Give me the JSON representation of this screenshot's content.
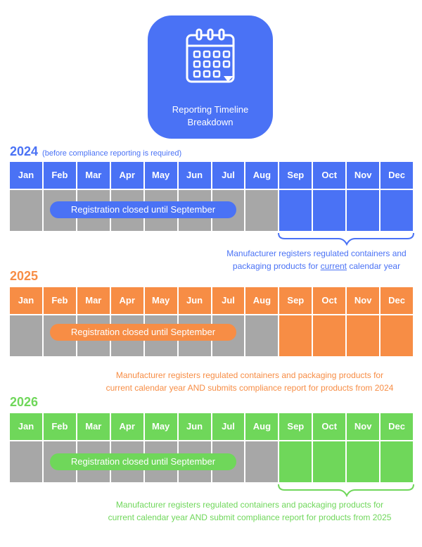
{
  "header": {
    "title_line1": "Reporting Timeline",
    "title_line2": "Breakdown",
    "icon": "calendar-icon"
  },
  "months": [
    "Jan",
    "Feb",
    "Mar",
    "Apr",
    "May",
    "Jun",
    "Jul",
    "Aug",
    "Sep",
    "Oct",
    "Nov",
    "Dec"
  ],
  "colors": {
    "blue": "#4a72f5",
    "orange": "#f78d45",
    "green": "#6fd75a",
    "gray": "#a7a7a7"
  },
  "sections": [
    {
      "year": "2024",
      "note": "(before compliance reporting is required)",
      "pill": "Registration closed until September",
      "desc_line1": "Manufacturer registers regulated containers and",
      "desc_line2_pre": "packaging products for ",
      "desc_line2_underline": "current",
      "desc_line2_post": " calendar year"
    },
    {
      "year": "2025",
      "pill": "Registration closed until September",
      "desc_line1": "Manufacturer registers regulated containers and packaging products for",
      "desc_line2": "current calendar year AND submits compliance report for products from 2024"
    },
    {
      "year": "2026",
      "pill": "Registration closed until September",
      "desc_line1": "Manufacturer registers regulated containers and packaging products for",
      "desc_line2": "current calendar year AND submit compliance report for products from 2025"
    }
  ]
}
